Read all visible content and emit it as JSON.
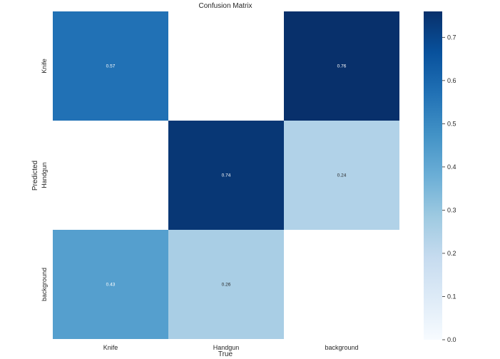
{
  "chart_data": {
    "type": "heatmap",
    "title": "Confusion Matrix",
    "xlabel": "True",
    "ylabel": "Predicted",
    "x_categories": [
      "Knife",
      "Handgun",
      "background"
    ],
    "y_categories": [
      "Knife",
      "Handgun",
      "background"
    ],
    "cells": [
      {
        "true": "Knife",
        "predicted": "Knife",
        "value": 0.57,
        "label": "0.57"
      },
      {
        "true": "background",
        "predicted": "Knife",
        "value": 0.76,
        "label": "0.76"
      },
      {
        "true": "Handgun",
        "predicted": "Handgun",
        "value": 0.74,
        "label": "0.74"
      },
      {
        "true": "background",
        "predicted": "Handgun",
        "value": 0.24,
        "label": "0.24"
      },
      {
        "true": "Knife",
        "predicted": "background",
        "value": 0.43,
        "label": "0.43"
      },
      {
        "true": "Handgun",
        "predicted": "background",
        "value": 0.26,
        "label": "0.26"
      }
    ],
    "colormap": "Blues",
    "colorbar": {
      "range": [
        0.0,
        0.76
      ],
      "ticks": [
        {
          "value": 0.0,
          "label": "0.0"
        },
        {
          "value": 0.1,
          "label": "0.1"
        },
        {
          "value": 0.2,
          "label": "0.2"
        },
        {
          "value": 0.3,
          "label": "0.3"
        },
        {
          "value": 0.4,
          "label": "0.4"
        },
        {
          "value": 0.5,
          "label": "0.5"
        },
        {
          "value": 0.6,
          "label": "0.6"
        },
        {
          "value": 0.7,
          "label": "0.7"
        }
      ]
    },
    "grid": false
  }
}
